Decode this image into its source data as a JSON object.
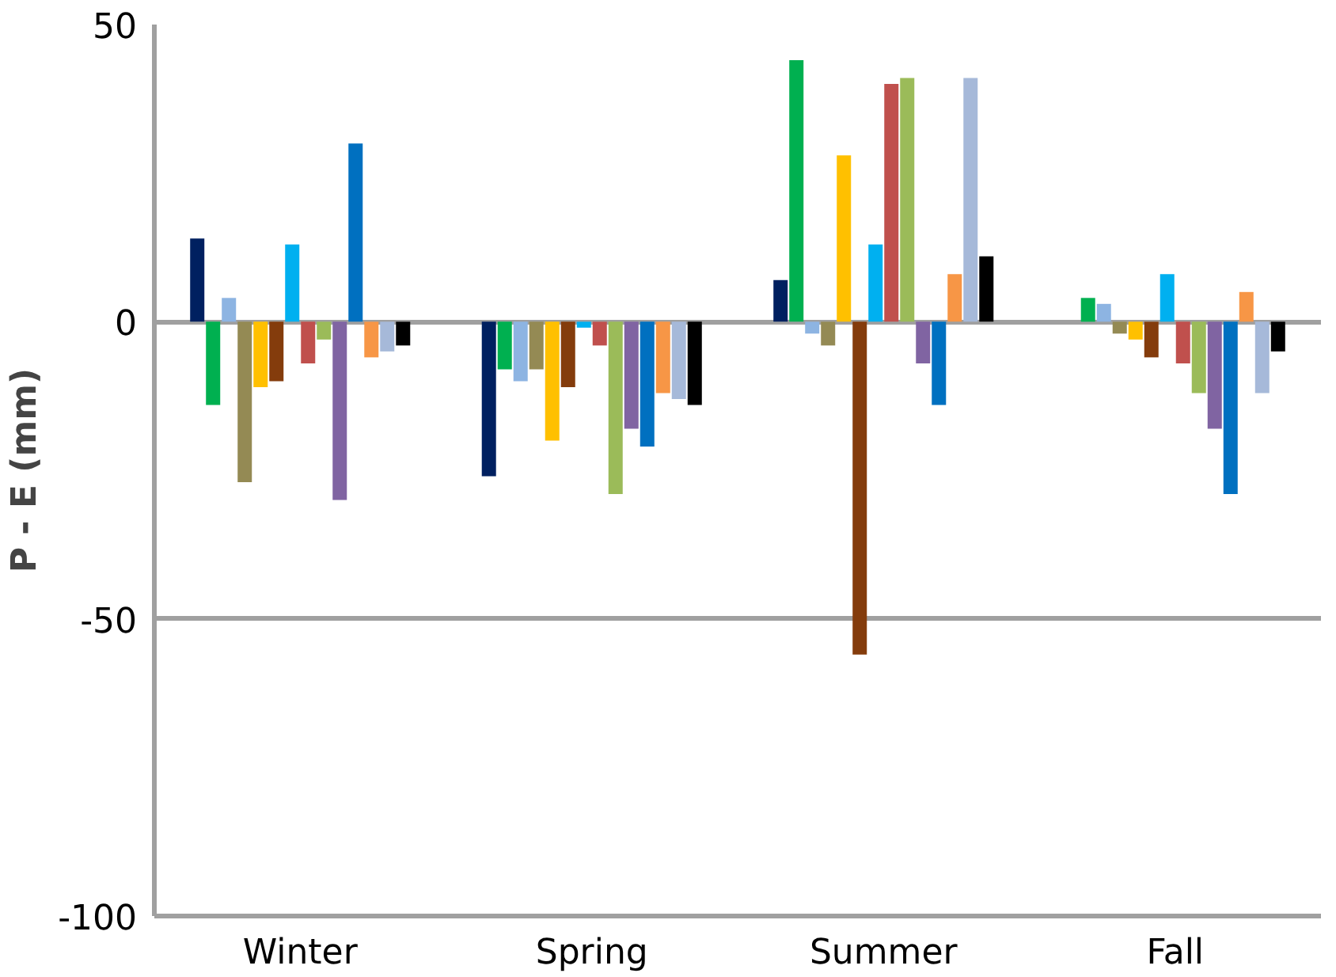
{
  "chart_data": {
    "type": "bar",
    "ylabel": "P - E (mm)",
    "categories": [
      "Winter",
      "Spring",
      "Summer",
      "Fall"
    ],
    "ylim": [
      -100,
      50
    ],
    "yticks": [
      -100,
      -50,
      0,
      50
    ],
    "grid": "y",
    "series": [
      {
        "color": "#002060",
        "values": [
          14,
          -26,
          7,
          null
        ]
      },
      {
        "color": "#00b050",
        "values": [
          -14,
          -8,
          44,
          4
        ]
      },
      {
        "color": "#8db4e2",
        "values": [
          4,
          -10,
          -2,
          3
        ]
      },
      {
        "color": "#948a54",
        "values": [
          -27,
          -8,
          -4,
          -2
        ]
      },
      {
        "color": "#ffc000",
        "values": [
          -11,
          -20,
          28,
          -3
        ]
      },
      {
        "color": "#843c0c",
        "values": [
          -10,
          -11,
          -56,
          -6
        ]
      },
      {
        "color": "#00b0f0",
        "values": [
          13,
          -1,
          13,
          8
        ]
      },
      {
        "color": "#c0504d",
        "values": [
          -7,
          -4,
          40,
          -7
        ]
      },
      {
        "color": "#9bbb59",
        "values": [
          -3,
          -29,
          41,
          -12
        ]
      },
      {
        "color": "#8064a2",
        "values": [
          -30,
          -18,
          -7,
          -18
        ]
      },
      {
        "color": "#0070c0",
        "values": [
          30,
          -21,
          -14,
          -29
        ]
      },
      {
        "color": "#f79646",
        "values": [
          -6,
          -12,
          8,
          5
        ]
      },
      {
        "color": "#a6b9d9",
        "values": [
          -5,
          -13,
          41,
          -12
        ]
      },
      {
        "color": "#000000",
        "values": [
          -4,
          -14,
          11,
          -5
        ]
      }
    ]
  }
}
